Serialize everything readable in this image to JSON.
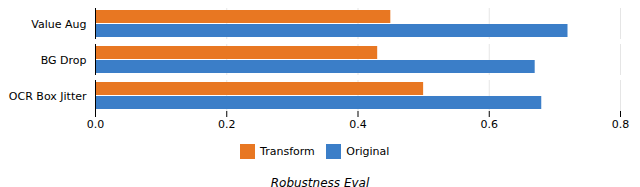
{
  "chart_data": {
    "type": "bar",
    "orientation": "horizontal",
    "categories": [
      "OCR Box Jitter",
      "BG Drop",
      "Value Aug"
    ],
    "series": [
      {
        "name": "Transform",
        "color": "#E87722",
        "values": [
          0.5,
          0.43,
          0.45
        ]
      },
      {
        "name": "Original",
        "color": "#3B7EC8",
        "values": [
          0.68,
          0.67,
          0.72
        ]
      }
    ],
    "xlim": [
      0,
      0.8
    ],
    "xticks": [
      0,
      0.2,
      0.4,
      0.6,
      0.8
    ],
    "grid": true,
    "legend": "bottom",
    "xlabel": "Robustness Eval"
  }
}
